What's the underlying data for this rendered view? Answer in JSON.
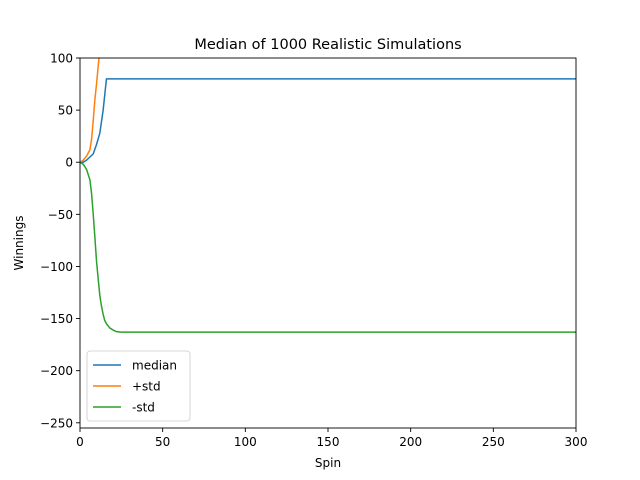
{
  "chart_data": {
    "type": "line",
    "title": "Median of 1000 Realistic Simulations",
    "xlabel": "Spin",
    "ylabel": "Winnings",
    "xlim": [
      0,
      300
    ],
    "ylim": [
      -255,
      100
    ],
    "xticks": [
      0,
      50,
      100,
      150,
      200,
      250,
      300
    ],
    "yticks": [
      100,
      50,
      0,
      -50,
      -100,
      -150,
      -200,
      -250
    ],
    "ytick_labels": [
      "100",
      "50",
      "0",
      "−50",
      "−100",
      "−150",
      "−200",
      "−250"
    ],
    "grid": false,
    "legend_position": "lower-left",
    "series": [
      {
        "name": "median",
        "color": "#1f77b4",
        "x": [
          0,
          2,
          4,
          6,
          8,
          10,
          12,
          14,
          15,
          16,
          300
        ],
        "y": [
          0,
          0,
          2,
          5,
          8,
          17,
          28,
          50,
          65,
          80,
          80
        ]
      },
      {
        "name": "+std",
        "color": "#ff7f0e",
        "x": [
          0,
          2,
          4,
          6,
          7,
          8,
          9,
          10,
          11,
          11.5
        ],
        "y": [
          0,
          2,
          6,
          12,
          22,
          40,
          60,
          75,
          92,
          100
        ]
      },
      {
        "name": "-std",
        "color": "#2ca02c",
        "x": [
          0,
          2,
          4,
          6,
          7,
          8,
          9,
          10,
          11,
          12,
          13,
          14,
          15,
          16,
          18,
          20,
          22,
          25,
          30,
          40,
          60,
          100,
          300
        ],
        "y": [
          0,
          -2,
          -7,
          -17,
          -30,
          -50,
          -72,
          -95,
          -112,
          -128,
          -138,
          -146,
          -152,
          -155,
          -159,
          -161,
          -162.5,
          -163,
          -163,
          -163,
          -163,
          -163,
          -163
        ]
      }
    ]
  }
}
